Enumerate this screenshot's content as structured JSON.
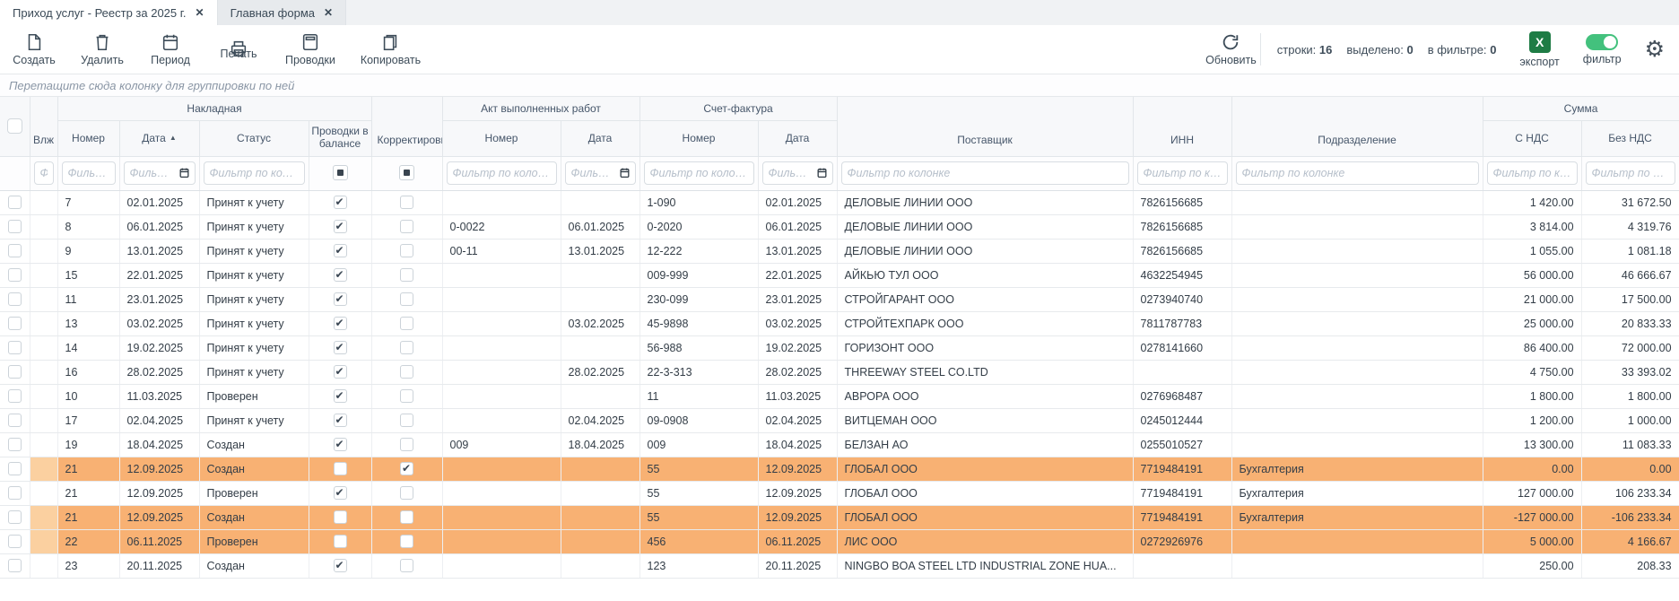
{
  "tabs": [
    {
      "label": "Приход услуг - Реестр за 2025 г.",
      "active": true
    },
    {
      "label": "Главная форма",
      "active": false
    }
  ],
  "toolbar": {
    "create_label": "Создать",
    "delete_label": "Удалить",
    "period_label": "Период",
    "print_label": "Печать",
    "postings_label": "Проводки",
    "copy_label": "Копировать",
    "refresh_label": "Обновить",
    "stats": {
      "rows_label": "строки:",
      "rows_value": "16",
      "selected_label": "выделено:",
      "selected_value": "0",
      "filtered_label": "в фильтре:",
      "filtered_value": "0"
    },
    "excel_letter": "X",
    "export_label": "экспорт",
    "filter_label": "фильтр",
    "filter_toggle_on": true
  },
  "group_panel": {
    "hint": "Перетащите сюда колонку для группировки по ней"
  },
  "table": {
    "groups": {
      "invoice": "Накладная",
      "act": "Акт выполненных работ",
      "facture": "Счет-фактура",
      "sum": "Сумма"
    },
    "headers": {
      "vlzh": "Влж",
      "number": "Номер",
      "date": "Дата",
      "status": "Статус",
      "posted": "Проводки в балансе",
      "correction": "Корректировка",
      "act_number": "Номер",
      "act_date": "Дата",
      "inv_number": "Номер",
      "inv_date": "Дата",
      "supplier": "Поставщик",
      "inn": "ИНН",
      "department": "Подразделение",
      "with_vat": "С НДС",
      "without_vat": "Без НДС"
    },
    "sort": {
      "column": "Дата",
      "direction": "asc"
    },
    "filter_placeholder": "Фильтр по колонке",
    "rows": [
      {
        "number": "7",
        "date": "02.01.2025",
        "status": "Принят к учету",
        "posted": true,
        "correction": false,
        "act_number": "",
        "act_date": "",
        "inv_number": "1-090",
        "inv_date": "02.01.2025",
        "supplier": "ДЕЛОВЫЕ ЛИНИИ ООО",
        "inn": "7826156685",
        "department": "",
        "with_vat": "1 420.00",
        "without_vat": "31 672.50",
        "highlight": false
      },
      {
        "number": "8",
        "date": "06.01.2025",
        "status": "Принят к учету",
        "posted": true,
        "correction": false,
        "act_number": "0-0022",
        "act_date": "06.01.2025",
        "inv_number": "0-2020",
        "inv_date": "06.01.2025",
        "supplier": "ДЕЛОВЫЕ ЛИНИИ ООО",
        "inn": "7826156685",
        "department": "",
        "with_vat": "3 814.00",
        "without_vat": "4 319.76",
        "highlight": false
      },
      {
        "number": "9",
        "date": "13.01.2025",
        "status": "Принят к учету",
        "posted": true,
        "correction": false,
        "act_number": "00-11",
        "act_date": "13.01.2025",
        "inv_number": "12-222",
        "inv_date": "13.01.2025",
        "supplier": "ДЕЛОВЫЕ ЛИНИИ ООО",
        "inn": "7826156685",
        "department": "",
        "with_vat": "1 055.00",
        "without_vat": "1 081.18",
        "highlight": false
      },
      {
        "number": "15",
        "date": "22.01.2025",
        "status": "Принят к учету",
        "posted": true,
        "correction": false,
        "act_number": "",
        "act_date": "",
        "inv_number": "009-999",
        "inv_date": "22.01.2025",
        "supplier": "АЙКЬЮ ТУЛ ООО",
        "inn": "4632254945",
        "department": "",
        "with_vat": "56 000.00",
        "without_vat": "46 666.67",
        "highlight": false
      },
      {
        "number": "11",
        "date": "23.01.2025",
        "status": "Принят к учету",
        "posted": true,
        "correction": false,
        "act_number": "",
        "act_date": "",
        "inv_number": "230-099",
        "inv_date": "23.01.2025",
        "supplier": "СТРОЙГАРАНТ ООО",
        "inn": "0273940740",
        "department": "",
        "with_vat": "21 000.00",
        "without_vat": "17 500.00",
        "highlight": false
      },
      {
        "number": "13",
        "date": "03.02.2025",
        "status": "Принят к учету",
        "posted": true,
        "correction": false,
        "act_number": "",
        "act_date": "03.02.2025",
        "inv_number": "45-9898",
        "inv_date": "03.02.2025",
        "supplier": "СТРОЙТЕХПАРК ООО",
        "inn": "7811787783",
        "department": "",
        "with_vat": "25 000.00",
        "without_vat": "20 833.33",
        "highlight": false
      },
      {
        "number": "14",
        "date": "19.02.2025",
        "status": "Принят к учету",
        "posted": true,
        "correction": false,
        "act_number": "",
        "act_date": "",
        "inv_number": "56-988",
        "inv_date": "19.02.2025",
        "supplier": "ГОРИЗОНТ ООО",
        "inn": "0278141660",
        "department": "",
        "with_vat": "86 400.00",
        "without_vat": "72 000.00",
        "highlight": false
      },
      {
        "number": "16",
        "date": "28.02.2025",
        "status": "Принят к учету",
        "posted": true,
        "correction": false,
        "act_number": "",
        "act_date": "28.02.2025",
        "inv_number": "22-3-313",
        "inv_date": "28.02.2025",
        "supplier": "THREEWAY STEEL CO.LTD",
        "inn": "",
        "department": "",
        "with_vat": "4 750.00",
        "without_vat": "33 393.02",
        "highlight": false
      },
      {
        "number": "10",
        "date": "11.03.2025",
        "status": "Проверен",
        "posted": true,
        "correction": false,
        "act_number": "",
        "act_date": "",
        "inv_number": "11",
        "inv_date": "11.03.2025",
        "supplier": "АВРОРА ООО",
        "inn": "0276968487",
        "department": "",
        "with_vat": "1 800.00",
        "without_vat": "1 800.00",
        "highlight": false
      },
      {
        "number": "17",
        "date": "02.04.2025",
        "status": "Принят к учету",
        "posted": true,
        "correction": false,
        "act_number": "",
        "act_date": "02.04.2025",
        "inv_number": "09-0908",
        "inv_date": "02.04.2025",
        "supplier": "ВИТЦЕМАН ООО",
        "inn": "0245012444",
        "department": "",
        "with_vat": "1 200.00",
        "without_vat": "1 000.00",
        "highlight": false
      },
      {
        "number": "19",
        "date": "18.04.2025",
        "status": "Создан",
        "posted": true,
        "correction": false,
        "act_number": "009",
        "act_date": "18.04.2025",
        "inv_number": "009",
        "inv_date": "18.04.2025",
        "supplier": "БЕЛЗАН АО",
        "inn": "0255010527",
        "department": "",
        "with_vat": "13 300.00",
        "without_vat": "11 083.33",
        "highlight": false
      },
      {
        "number": "21",
        "date": "12.09.2025",
        "status": "Создан",
        "posted": false,
        "correction": true,
        "act_number": "",
        "act_date": "",
        "inv_number": "55",
        "inv_date": "12.09.2025",
        "supplier": "ГЛОБАЛ ООО",
        "inn": "7719484191",
        "department": "Бухгалтерия",
        "with_vat": "0.00",
        "without_vat": "0.00",
        "highlight": true
      },
      {
        "number": "21",
        "date": "12.09.2025",
        "status": "Проверен",
        "posted": true,
        "correction": false,
        "act_number": "",
        "act_date": "",
        "inv_number": "55",
        "inv_date": "12.09.2025",
        "supplier": "ГЛОБАЛ ООО",
        "inn": "7719484191",
        "department": "Бухгалтерия",
        "with_vat": "127 000.00",
        "without_vat": "106 233.34",
        "highlight": false
      },
      {
        "number": "21",
        "date": "12.09.2025",
        "status": "Создан",
        "posted": false,
        "correction": false,
        "act_number": "",
        "act_date": "",
        "inv_number": "55",
        "inv_date": "12.09.2025",
        "supplier": "ГЛОБАЛ ООО",
        "inn": "7719484191",
        "department": "Бухгалтерия",
        "with_vat": "-127 000.00",
        "without_vat": "-106 233.34",
        "highlight": true
      },
      {
        "number": "22",
        "date": "06.11.2025",
        "status": "Проверен",
        "posted": false,
        "correction": false,
        "act_number": "",
        "act_date": "",
        "inv_number": "456",
        "inv_date": "06.11.2025",
        "supplier": "ЛИС ООО",
        "inn": "0272926976",
        "department": "",
        "with_vat": "5 000.00",
        "without_vat": "4 166.67",
        "highlight": true
      },
      {
        "number": "23",
        "date": "20.11.2025",
        "status": "Создан",
        "posted": true,
        "correction": false,
        "act_number": "",
        "act_date": "",
        "inv_number": "123",
        "inv_date": "20.11.2025",
        "supplier": "NINGBO BOA STEEL LTD INDUSTRIAL ZONE HUA...",
        "inn": "",
        "department": "",
        "with_vat": "250.00",
        "without_vat": "208.33",
        "highlight": false
      }
    ]
  },
  "colors": {
    "highlight_row": "#f8b173",
    "highlight_row_light": "#fbd0a0",
    "excel_green": "#1e7c45",
    "toggle_green": "#43c17d",
    "icon": "#3d4c59"
  }
}
